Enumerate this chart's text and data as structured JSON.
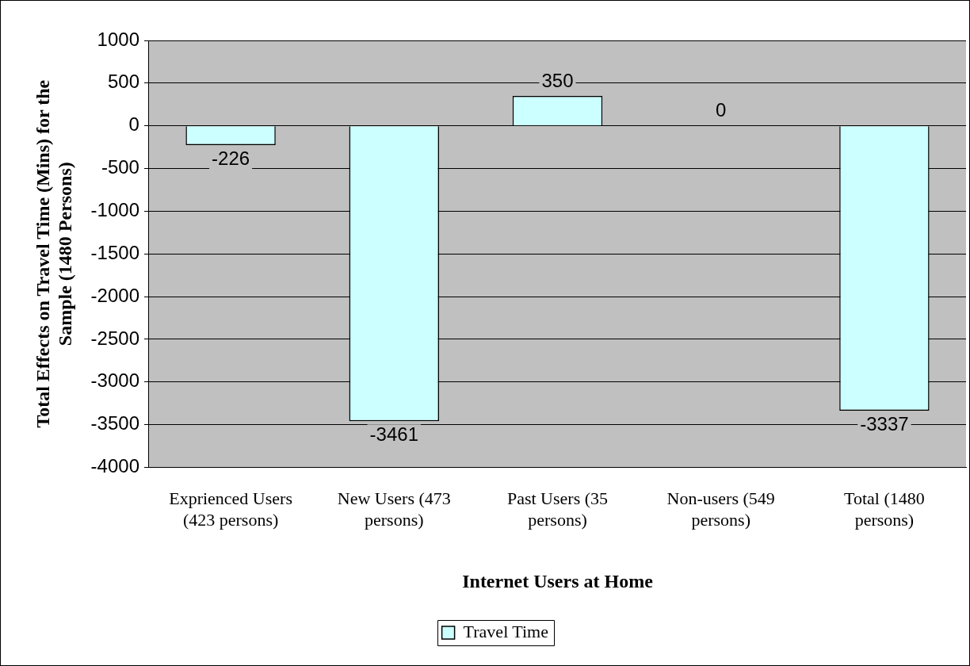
{
  "chart_data": {
    "type": "bar",
    "xlabel": "Internet Users at Home",
    "ylabel": "Total Effects on Travel Time (Mins) for the Sample (1480 Persons)",
    "categories": [
      "Exprienced Users (423 persons)",
      "New Users (473 persons)",
      "Past Users (35 persons)",
      "Non-users (549 persons)",
      "Total (1480 persons)"
    ],
    "series": [
      {
        "name": "Travel Time",
        "color": "#ccffff",
        "values": [
          -226,
          -3461,
          350,
          0,
          -3337
        ]
      }
    ],
    "ylim": [
      -4000,
      1000
    ],
    "yticks": [
      -4000,
      -3500,
      -3000,
      -2500,
      -2000,
      -1500,
      -1000,
      -500,
      0,
      500,
      1000
    ],
    "grid": "y",
    "legend": "bottom",
    "data_labels": true
  }
}
